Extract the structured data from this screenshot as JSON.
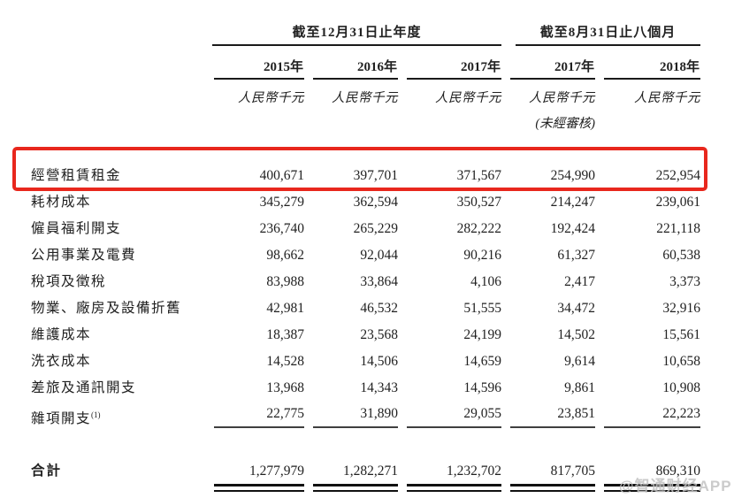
{
  "table": {
    "group_headers": [
      {
        "label": "截至12月31日止年度"
      },
      {
        "label": "截至8月31日止八個月"
      }
    ],
    "year_headers": [
      "2015年",
      "2016年",
      "2017年",
      "2017年",
      "2018年"
    ],
    "unit_label": "人民幣千元",
    "unaudited_note": "(未經審核)",
    "rows": [
      {
        "label": "經營租賃租金",
        "values": [
          "400,671",
          "397,701",
          "371,567",
          "254,990",
          "252,954"
        ]
      },
      {
        "label": "耗材成本",
        "values": [
          "345,279",
          "362,594",
          "350,527",
          "214,247",
          "239,061"
        ]
      },
      {
        "label": "僱員福利開支",
        "values": [
          "236,740",
          "265,229",
          "282,222",
          "192,424",
          "221,118"
        ]
      },
      {
        "label": "公用事業及電費",
        "values": [
          "98,662",
          "92,044",
          "90,216",
          "61,327",
          "60,538"
        ]
      },
      {
        "label": "稅項及徵稅",
        "values": [
          "83,988",
          "33,864",
          "4,106",
          "2,417",
          "3,373"
        ]
      },
      {
        "label": "物業、廠房及設備折舊",
        "values": [
          "42,981",
          "46,532",
          "51,555",
          "34,472",
          "32,916"
        ]
      },
      {
        "label": "維護成本",
        "values": [
          "18,387",
          "23,568",
          "24,199",
          "14,502",
          "15,561"
        ]
      },
      {
        "label": "洗衣成本",
        "values": [
          "14,528",
          "14,506",
          "14,659",
          "9,614",
          "10,658"
        ]
      },
      {
        "label": "差旅及通訊開支",
        "values": [
          "13,968",
          "14,343",
          "14,596",
          "9,861",
          "10,908"
        ]
      },
      {
        "label": "雜項開支",
        "footnote": "(1)",
        "values": [
          "22,775",
          "31,890",
          "29,055",
          "23,851",
          "22,223"
        ]
      }
    ],
    "total": {
      "label": "合計",
      "values": [
        "1,277,979",
        "1,282,271",
        "1,232,702",
        "817,705",
        "869,310"
      ]
    }
  },
  "highlight": {
    "row_label": "經營租賃租金",
    "color": "#e8271d"
  },
  "watermark": {
    "text": "@智通财经APP"
  }
}
